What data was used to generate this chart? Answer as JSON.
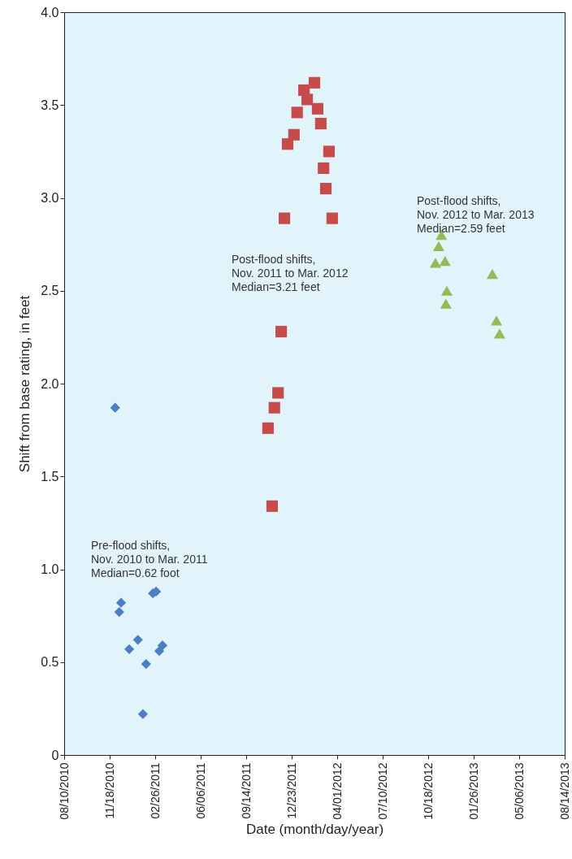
{
  "chart_data": {
    "type": "scatter",
    "xlabel": "Date (month/day/year)",
    "ylabel": "Shift from base rating, in feet",
    "xlim": [
      "2010-08-10",
      "2013-08-14"
    ],
    "xticks": [
      {
        "value": "2010-08-10",
        "label": "08/10/2010"
      },
      {
        "value": "2010-11-18",
        "label": "11/18/2010"
      },
      {
        "value": "2011-02-26",
        "label": "02/26/2011"
      },
      {
        "value": "2011-06-06",
        "label": "06/06/2011"
      },
      {
        "value": "2011-09-14",
        "label": "09/14/2011"
      },
      {
        "value": "2011-12-23",
        "label": "12/23/2011"
      },
      {
        "value": "2012-04-01",
        "label": "04/01/2012"
      },
      {
        "value": "2012-07-10",
        "label": "07/10/2012"
      },
      {
        "value": "2012-10-18",
        "label": "10/18/2012"
      },
      {
        "value": "2013-01-26",
        "label": "01/26/2013"
      },
      {
        "value": "2013-05-06",
        "label": "05/06/2013"
      },
      {
        "value": "2013-08-14",
        "label": "08/14/2013"
      }
    ],
    "ylim": [
      0,
      4
    ],
    "yticks": [
      {
        "value": 0,
        "label": "0"
      },
      {
        "value": 0.5,
        "label": "0.5"
      },
      {
        "value": 1,
        "label": "1.0"
      },
      {
        "value": 1.5,
        "label": "1.5"
      },
      {
        "value": 2,
        "label": "2.0"
      },
      {
        "value": 2.5,
        "label": "2.5"
      },
      {
        "value": 3,
        "label": "3.0"
      },
      {
        "value": 3.5,
        "label": "3.5"
      },
      {
        "value": 4,
        "label": "4.0"
      }
    ],
    "grid": false,
    "series": [
      {
        "color": "#4a7fc1",
        "marker": "diamond",
        "x": [
          "2010-11-30",
          "2010-12-13",
          "2010-12-09",
          "2010-12-31",
          "2011-01-19",
          "2011-02-06",
          "2011-01-30",
          "2011-02-21",
          "2011-02-28",
          "2011-03-07",
          "2011-03-14"
        ],
        "values": [
          1.87,
          0.82,
          0.77,
          0.57,
          0.62,
          0.49,
          0.22,
          0.87,
          0.88,
          0.56,
          0.59
        ]
      },
      {
        "color": "#c84b4b",
        "marker": "square",
        "x": [
          "2011-11-01",
          "2011-11-10",
          "2011-11-15",
          "2011-11-23",
          "2011-11-30",
          "2011-12-07",
          "2011-12-14",
          "2011-12-28",
          "2012-01-04",
          "2012-01-19",
          "2012-01-26",
          "2012-02-11",
          "2012-02-18",
          "2012-02-25",
          "2012-03-02",
          "2012-03-07",
          "2012-03-14",
          "2012-03-21"
        ],
        "values": [
          1.76,
          1.34,
          1.87,
          1.95,
          2.28,
          2.89,
          3.29,
          3.34,
          3.46,
          3.58,
          3.53,
          3.62,
          3.48,
          3.4,
          3.16,
          3.05,
          3.25,
          2.89
        ]
      },
      {
        "color": "#97b957",
        "marker": "triangle",
        "x": [
          "2012-11-03",
          "2012-11-10",
          "2012-11-16",
          "2012-11-24",
          "2012-11-28",
          "2012-11-26",
          "2013-03-08",
          "2013-03-17",
          "2013-03-24"
        ],
        "values": [
          2.65,
          2.74,
          2.8,
          2.66,
          2.5,
          2.43,
          2.59,
          2.34,
          2.27
        ]
      }
    ],
    "annotations": [
      "Pre-flood shifts,\nNov. 2010 to Mar. 2011\nMedian=0.62 foot",
      "Post-flood shifts,\nNov. 2011 to Mar. 2012\nMedian=3.21 feet",
      "Post-flood shifts,\nNov. 2012 to Mar. 2013\nMedian=2.59 feet"
    ]
  }
}
